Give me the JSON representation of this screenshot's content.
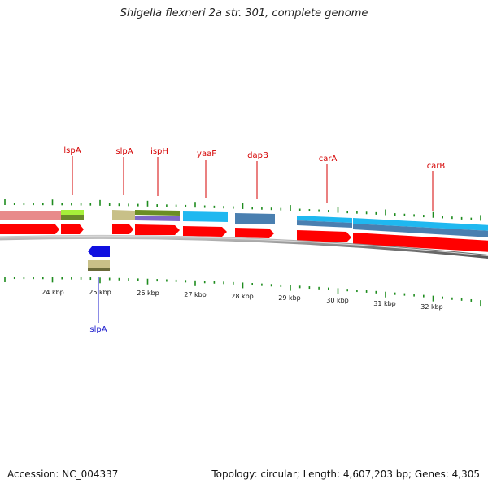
{
  "title": "Shigella flexneri 2a str. 301, complete genome",
  "footer": {
    "accession": "Accession: NC_004337",
    "topology": "Topology: circular; Length: 4,607,203 bp; Genes: 4,305"
  },
  "colors": {
    "label_fwd": "#d40000",
    "label_rev": "#1a1acd",
    "tick": "#1e8c1e",
    "cds": "#ff0000",
    "rev_cds": "#1010e0",
    "backbone": "#8a8a8a"
  },
  "scale_labels": [
    "24 kbp",
    "25 kbp",
    "26 kbp",
    "27 kbp",
    "28 kbp",
    "29 kbp",
    "30 kbp",
    "31 kbp",
    "32 kbp"
  ],
  "gene_labels": [
    {
      "id": "lspA",
      "text": "lspA",
      "strand": "forward"
    },
    {
      "id": "slpA-top",
      "text": "slpA",
      "strand": "forward"
    },
    {
      "id": "ispH",
      "text": "ispH",
      "strand": "forward"
    },
    {
      "id": "yaaF",
      "text": "yaaF",
      "strand": "forward"
    },
    {
      "id": "dapB",
      "text": "dapB",
      "strand": "forward"
    },
    {
      "id": "carA",
      "text": "carA",
      "strand": "forward"
    },
    {
      "id": "carB",
      "text": "carB",
      "strand": "forward"
    },
    {
      "id": "slpA-bottom",
      "text": "slpA",
      "strand": "reverse"
    }
  ]
}
